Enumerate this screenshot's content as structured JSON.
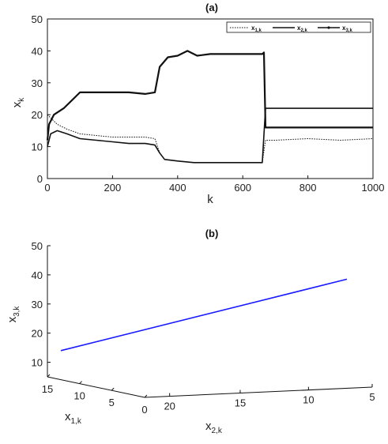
{
  "chart_data": [
    {
      "type": "line",
      "title": "(a)",
      "xlabel": "k",
      "ylabel": "x",
      "ylabel_sub": "k",
      "xlim": [
        0,
        1000
      ],
      "ylim": [
        0,
        50
      ],
      "xticks": [
        "0",
        "200",
        "400",
        "600",
        "800",
        "1000"
      ],
      "yticks": [
        "0",
        "10",
        "20",
        "30",
        "40",
        "50"
      ],
      "legend": "top-right",
      "grid": false,
      "series": [
        {
          "name": "x",
          "name_sub": "1,k",
          "style": "dotted",
          "points": [
            [
              0,
              20
            ],
            [
              10,
              19
            ],
            [
              30,
              17
            ],
            [
              60,
              15.5
            ],
            [
              100,
              14
            ],
            [
              150,
              13.5
            ],
            [
              200,
              13
            ],
            [
              250,
              13
            ],
            [
              300,
              13
            ],
            [
              330,
              12.5
            ],
            [
              345,
              8
            ],
            [
              360,
              6
            ],
            [
              400,
              5.5
            ],
            [
              450,
              5
            ],
            [
              500,
              5
            ],
            [
              550,
              5
            ],
            [
              600,
              5
            ],
            [
              660,
              5
            ],
            [
              670,
              12
            ],
            [
              700,
              12
            ],
            [
              800,
              12.5
            ],
            [
              900,
              12
            ],
            [
              1000,
              12.5
            ]
          ]
        },
        {
          "name": "x",
          "name_sub": "2,k",
          "style": "solid",
          "points": [
            [
              0,
              10
            ],
            [
              10,
              14
            ],
            [
              30,
              15
            ],
            [
              60,
              14
            ],
            [
              100,
              12.5
            ],
            [
              150,
              12
            ],
            [
              200,
              11.5
            ],
            [
              250,
              11
            ],
            [
              300,
              11
            ],
            [
              330,
              10.5
            ],
            [
              345,
              8
            ],
            [
              360,
              6
            ],
            [
              400,
              5.5
            ],
            [
              450,
              5
            ],
            [
              500,
              5
            ],
            [
              550,
              5
            ],
            [
              600,
              5
            ],
            [
              660,
              5
            ],
            [
              670,
              22
            ],
            [
              700,
              22
            ],
            [
              800,
              22
            ],
            [
              900,
              22
            ],
            [
              1000,
              22
            ]
          ]
        },
        {
          "name": "x",
          "name_sub": "3,k",
          "style": "solid-marker",
          "points": [
            [
              0,
              12
            ],
            [
              5,
              17
            ],
            [
              20,
              20
            ],
            [
              50,
              22
            ],
            [
              80,
              25
            ],
            [
              100,
              27
            ],
            [
              150,
              27
            ],
            [
              200,
              27
            ],
            [
              250,
              27
            ],
            [
              300,
              26.5
            ],
            [
              330,
              27
            ],
            [
              345,
              35
            ],
            [
              370,
              38
            ],
            [
              400,
              38.5
            ],
            [
              430,
              40
            ],
            [
              460,
              38.5
            ],
            [
              500,
              39
            ],
            [
              550,
              39
            ],
            [
              600,
              39
            ],
            [
              660,
              39
            ],
            [
              665,
              39.5
            ],
            [
              670,
              16
            ],
            [
              700,
              16
            ],
            [
              800,
              16
            ],
            [
              900,
              16
            ],
            [
              1000,
              16
            ]
          ]
        }
      ]
    },
    {
      "type": "line3d",
      "title": "(b)",
      "xlabel": "x",
      "xlabel_sub": "2,k",
      "ylabel": "x",
      "ylabel_sub": "1,k",
      "zlabel": "x",
      "zlabel_sub": "3,k",
      "zlim": [
        5,
        50
      ],
      "zticks": [
        "10",
        "20",
        "30",
        "40",
        "50"
      ],
      "x_axis_ticks": [
        "20",
        "15",
        "10",
        "5"
      ],
      "y_axis_ticks": [
        "15",
        "10",
        "5",
        "0"
      ],
      "grid": false,
      "line_color": "#1a1aff",
      "series": [
        {
          "name": "",
          "start": {
            "x2": 20,
            "x1": 15,
            "x3": 14
          },
          "end": {
            "x2": 5,
            "x1": 5,
            "x3": 38.5
          }
        }
      ]
    }
  ]
}
